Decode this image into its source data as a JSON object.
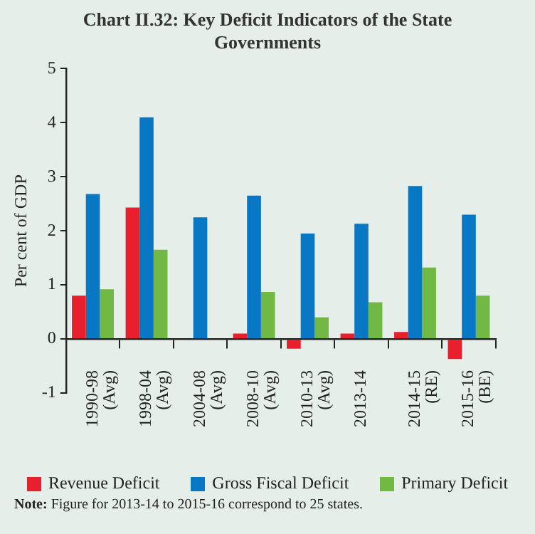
{
  "chart_data": {
    "type": "bar",
    "title": "Chart II.32: Key Deficit Indicators of the State Governments",
    "ylabel": "Per cent of GDP",
    "categories": [
      "1990-98 (Avg)",
      "1998-04 (Avg)",
      "2004-08 (Avg)",
      "2008-10 (Avg)",
      "2010-13 (Avg)",
      "2013-14",
      "2014-15 (RE)",
      "2015-16 (BE)"
    ],
    "series": [
      {
        "name": "Revenue Deficit",
        "color": "#e8202e",
        "values": [
          0.8,
          2.43,
          0,
          0.1,
          -0.18,
          0.1,
          0.13,
          -0.37
        ]
      },
      {
        "name": "Gross Fiscal Deficit",
        "color": "#0877c4",
        "values": [
          2.68,
          4.1,
          2.25,
          2.65,
          1.95,
          2.13,
          2.83,
          2.3
        ]
      },
      {
        "name": "Primary Deficit",
        "color": "#72b844",
        "values": [
          0.92,
          1.65,
          0,
          0.87,
          0.4,
          0.68,
          1.32,
          0.8
        ]
      }
    ],
    "ylim": [
      -1,
      5
    ],
    "yticks": [
      -1,
      0,
      1,
      2,
      3,
      4,
      5
    ],
    "grid": false,
    "legend": "bottom",
    "annotations": [
      "Note: Figure for 2013-14 to 2015-16 correspond to 25 states."
    ]
  }
}
